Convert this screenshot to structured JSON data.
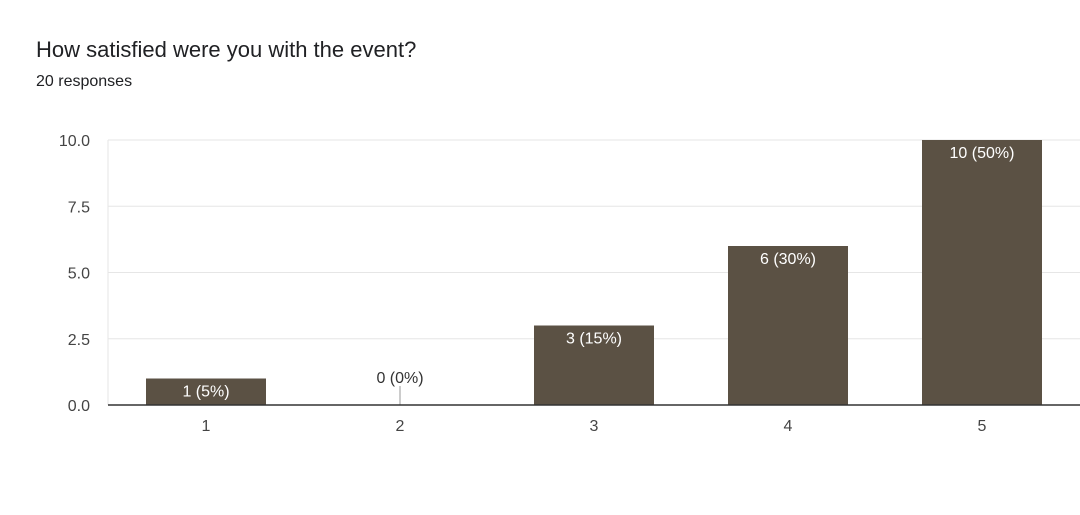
{
  "title": "How satisfied were you with the event?",
  "subtitle": "20 responses",
  "colors": {
    "bar": "#5b5144",
    "grid": "#e6e6e6",
    "axis": "#333333",
    "label_inside": "#ffffff",
    "label_outside": "#333333"
  },
  "chart_data": {
    "type": "bar",
    "title": "How satisfied were you with the event?",
    "categories": [
      "1",
      "2",
      "3",
      "4",
      "5"
    ],
    "values": [
      1,
      0,
      3,
      6,
      10
    ],
    "data_labels": [
      "1 (5%)",
      "0 (0%)",
      "3 (15%)",
      "6 (30%)",
      "10 (50%)"
    ],
    "y_ticks": [
      "0.0",
      "2.5",
      "5.0",
      "7.5",
      "10.0"
    ],
    "y_tick_values": [
      0,
      2.5,
      5,
      7.5,
      10
    ],
    "ylim": [
      0,
      10
    ],
    "grid": true,
    "xlabel": "",
    "ylabel": ""
  }
}
